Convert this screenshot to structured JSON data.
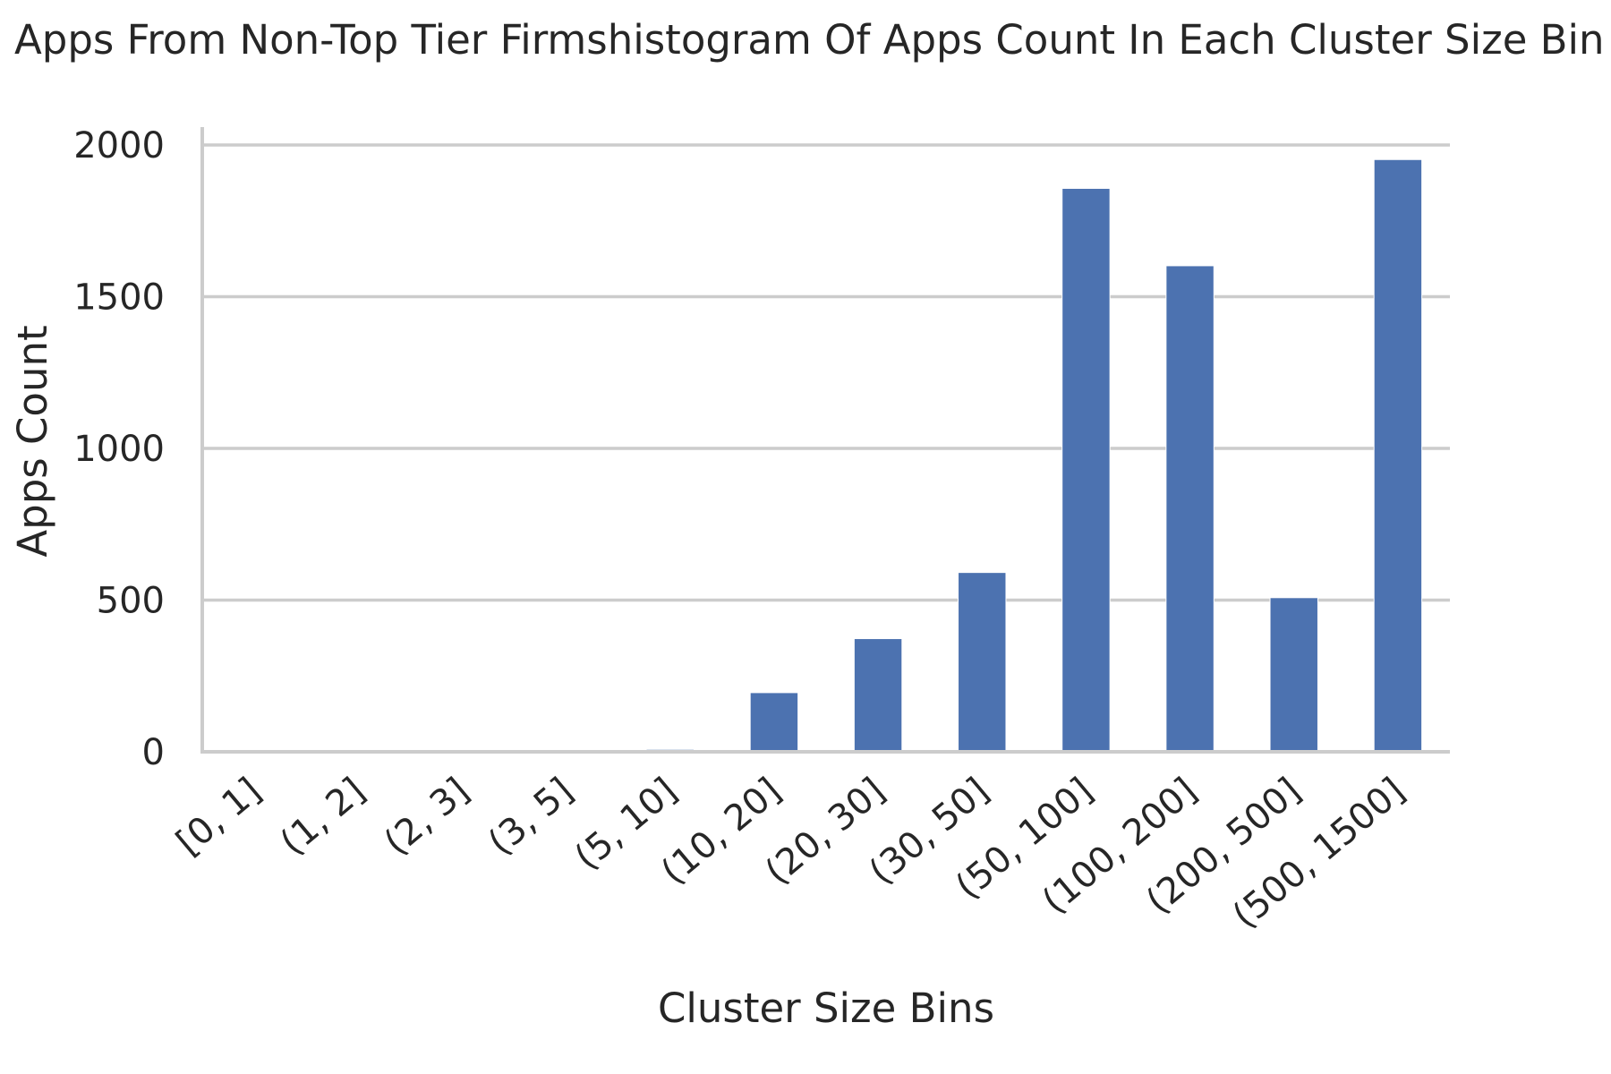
{
  "chart_data": {
    "type": "bar",
    "title": "Apps From Non-Top Tier Firmshistogram Of Apps Count In Each Cluster Size Bin",
    "xlabel": "Cluster Size Bins",
    "ylabel": "Apps Count",
    "categories": [
      "[0, 1]",
      "(1, 2]",
      "(2, 3]",
      "(3, 5]",
      "(5, 10]",
      "(10, 20]",
      "(20, 30]",
      "(30, 50]",
      "(50, 100]",
      "(100, 200]",
      "(200, 500]",
      "(500, 1500]"
    ],
    "values": [
      0,
      0,
      0,
      0,
      8,
      195,
      373,
      591,
      1857,
      1602,
      508,
      1952
    ],
    "ylim": [
      0,
      2050
    ],
    "yticks": [
      0,
      500,
      1000,
      1500,
      2000
    ],
    "grid": "y",
    "bar_color": "#4c72b0"
  }
}
